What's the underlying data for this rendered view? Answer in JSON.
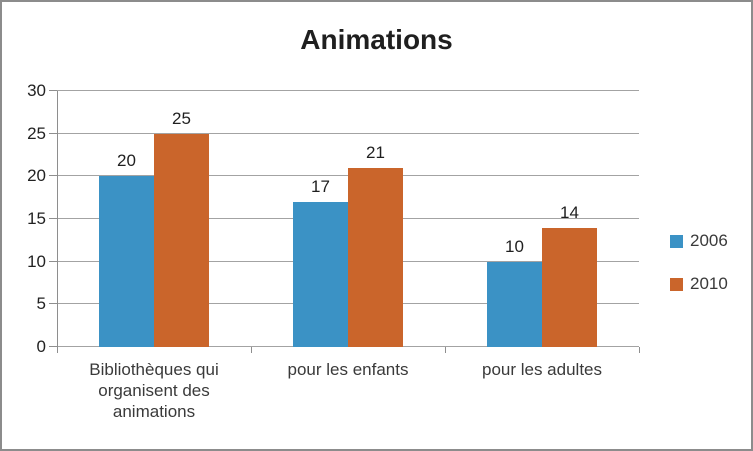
{
  "frame": {
    "border_color": "#8C8C8C",
    "background": "#FFFFFF"
  },
  "chart_data": {
    "type": "bar",
    "title": "Animations",
    "categories": [
      "Bibliothèques qui organisent des animations",
      "pour les enfants",
      "pour les adultes"
    ],
    "series": [
      {
        "name": "2006",
        "color": "#3B92C5",
        "values": [
          20,
          17,
          10
        ]
      },
      {
        "name": "2010",
        "color": "#CA652B",
        "values": [
          25,
          21,
          14
        ]
      }
    ],
    "ylim": [
      0,
      30
    ],
    "yticks": [
      0,
      5,
      10,
      15,
      20,
      25,
      30
    ],
    "grid": true,
    "legend_position": "right",
    "data_labels_visible": true,
    "xlabel": "",
    "ylabel": ""
  },
  "style_colors": {
    "gridline": "#A3A3A3",
    "axis": "#8E8E8E",
    "title_text": "#1F1F1F",
    "tick_text": "#222222",
    "data_label_text": "#1F1F1F",
    "category_text": "#3A3A3A",
    "legend_text": "#3A3A3A"
  }
}
